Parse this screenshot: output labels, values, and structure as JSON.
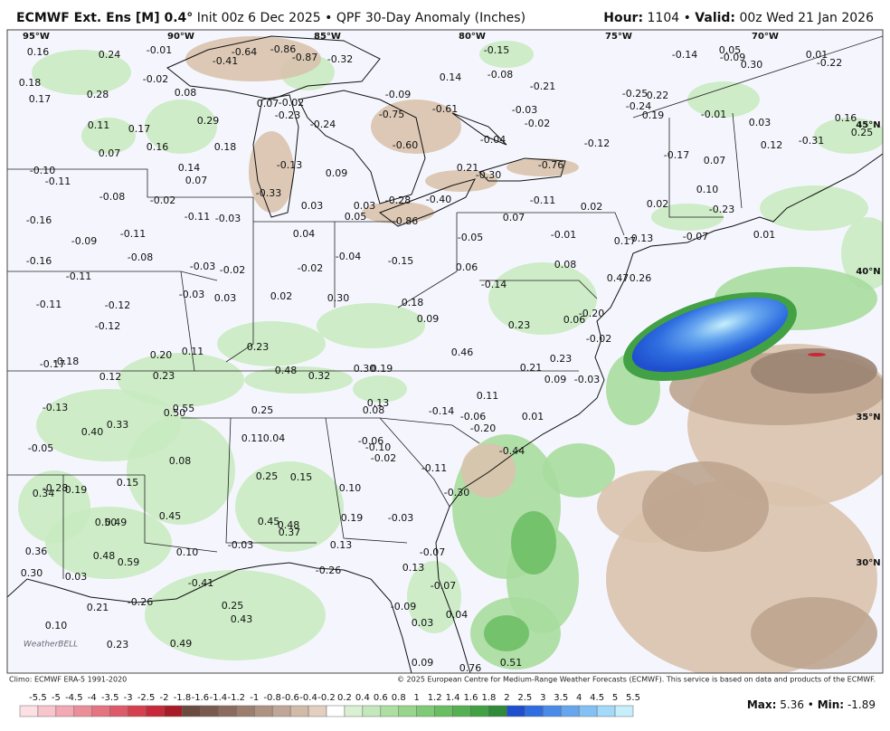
{
  "header": {
    "model": "ECMWF Ext. Ens [M] 0.4°",
    "title": "Init 00z 6 Dec 2025 • QPF 30-Day Anomaly (Inches)",
    "hour_label": "Hour:",
    "hour": "1104 •",
    "valid_label": "Valid:",
    "valid": "00z Wed 21 Jan 2026"
  },
  "map": {
    "longitudes": [
      "95°W",
      "90°W",
      "85°W",
      "80°W",
      "75°W",
      "70°W"
    ],
    "latitudes": [
      "45°N",
      "40°N",
      "35°N",
      "30°N"
    ],
    "labels": [
      "0.16",
      "0.24",
      "-0.01",
      "-0.64",
      "-0.86",
      "-0.87",
      "-0.32",
      "-0.41",
      "-0.15",
      "0.05",
      "-0.14",
      "-0.09",
      "0.30",
      "0.01",
      "-0.22",
      "0.18",
      "-0.02",
      "0.14",
      "-0.08",
      "-0.21",
      "0.08",
      "0.28",
      "0.17",
      "-0.09",
      "0.22",
      "-0.25",
      "0.07",
      "-0.02",
      "-0.24",
      "0.19",
      "-0.75",
      "-0.61",
      "-0.03",
      "-0.01",
      "0.16",
      "0.11",
      "0.17",
      "0.29",
      "-0.23",
      "-0.24",
      "-0.02",
      "0.03",
      "0.25",
      "0.16",
      "0.18",
      "-0.60",
      "-0.04",
      "-0.12",
      "0.12",
      "-0.31",
      "0.07",
      "-0.17",
      "0.07",
      "-0.13",
      "0.14",
      "0.21",
      "-0.76",
      "-0.10",
      "0.09",
      "-0.30",
      "0.07",
      "-0.11",
      "-0.33",
      "0.10",
      "-0.08",
      "-0.02",
      "-0.11",
      "0.03",
      "0.03",
      "-0.28",
      "-0.40",
      "0.02",
      "0.02",
      "-0.23",
      "-0.11",
      "-0.03",
      "0.05",
      "-0.86",
      "0.07",
      "-0.16",
      "-0.11",
      "0.04",
      "-0.05",
      "-0.01",
      "0.17",
      "-0.13",
      "-0.07",
      "0.01",
      "-0.09",
      "-0.08",
      "-0.04",
      "-0.15",
      "0.06",
      "0.08",
      "-0.16",
      "-0.03",
      "-0.02",
      "-0.02",
      "-0.11",
      "0.47",
      "0.26",
      "-0.14",
      "-0.03",
      "0.03",
      "0.02",
      "0.30",
      "0.18",
      "-0.11",
      "-0.12",
      "0.09",
      "-0.20",
      "0.06",
      "0.23",
      "-0.12",
      "-0.02",
      "0.23",
      "0.11",
      "0.46",
      "0.20",
      "0.23",
      "-0.17",
      "-0.18",
      "0.48",
      "0.32",
      "0.30",
      "0.19",
      "0.21",
      "0.12",
      "0.23",
      "0.09",
      "-0.03",
      "0.11",
      "0.13",
      "0.55",
      "0.50",
      "0.25",
      "0.08",
      "-0.14",
      "-0.13",
      "-0.06",
      "0.01",
      "0.33",
      "0.40",
      "-0.20",
      "0.11",
      "0.04",
      "-0.06",
      "-0.10",
      "-0.44",
      "-0.05",
      "-0.02",
      "0.08",
      "-0.11",
      "0.25",
      "0.15",
      "0.15",
      "-0.28",
      "0.19",
      "0.34",
      "0.10",
      "-0.30",
      "0.45",
      "0.19",
      "-0.03",
      "0.45",
      "0.48",
      "0.37",
      "0.50",
      "0.49",
      "0.13",
      "-0.03",
      "0.36",
      "0.48",
      "0.10",
      "0.59",
      "-0.07",
      "0.13",
      "-0.26",
      "0.30",
      "0.03",
      "-0.41",
      "-0.07",
      "-0.26",
      "0.21",
      "0.25",
      "-0.09",
      "0.43",
      "0.04",
      "0.03",
      "0.10",
      "0.23",
      "0.49",
      "0.09",
      "0.76",
      "0.51"
    ],
    "logo": "WeatherBELL"
  },
  "footer": {
    "climo": "Climo: ECMWF ERA-5 1991-2020",
    "copyright": "© 2025 European Centre for Medium-Range Weather Forecasts (ECMWF). This service is based on data and products of the ECMWF."
  },
  "colorbar": {
    "ticks": [
      "-5.5",
      "-5",
      "-4.5",
      "-4",
      "-3.5",
      "-3",
      "-2.5",
      "-2",
      "-1.8",
      "-1.6",
      "-1.4",
      "-1.2",
      "-1",
      "-0.8",
      "-0.6",
      "-0.4",
      "-0.2",
      "0.2",
      "0.4",
      "0.6",
      "0.8",
      "1",
      "1.2",
      "1.4",
      "1.6",
      "1.8",
      "2",
      "2.5",
      "3",
      "3.5",
      "4",
      "4.5",
      "5",
      "5.5"
    ]
  },
  "stats": {
    "max_label": "Max:",
    "max": "5.36",
    "separator": "•",
    "min_label": "Min:",
    "min": "-1.89"
  }
}
